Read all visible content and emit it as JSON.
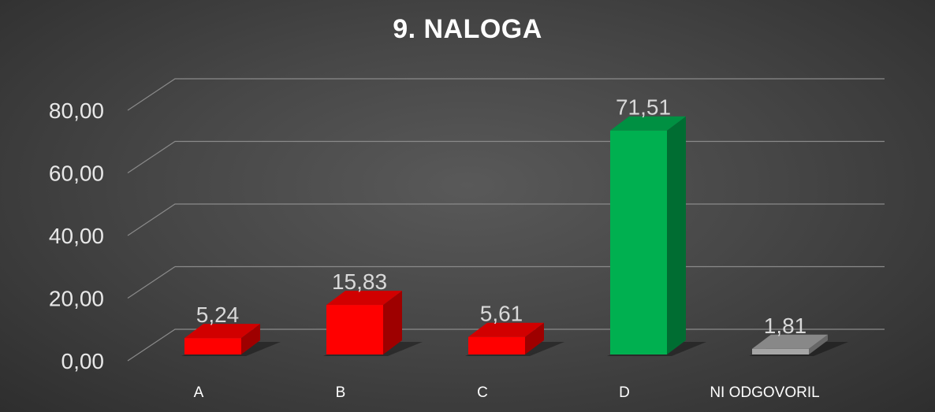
{
  "chart_data": {
    "type": "bar",
    "title": "9. NALOGA",
    "categories": [
      "A",
      "B",
      "C",
      "D",
      "NI ODGOVORIL"
    ],
    "values": [
      5.24,
      15.83,
      5.61,
      71.51,
      1.81
    ],
    "value_labels": [
      "5,24",
      "15,83",
      "5,61",
      "71,51",
      "1,81"
    ],
    "ylim": [
      0,
      80
    ],
    "y_ticks": [
      {
        "value": 0,
        "label": "0,00"
      },
      {
        "value": 20,
        "label": "20,00"
      },
      {
        "value": 40,
        "label": "40,00"
      },
      {
        "value": 60,
        "label": "60,00"
      },
      {
        "value": 80,
        "label": "80,00"
      }
    ],
    "bar_colors": [
      "#ff0000",
      "#ff0000",
      "#ff0000",
      "#00b050",
      "#a6a6a6"
    ],
    "style": "3d-column",
    "grid": true,
    "legend": "none",
    "xlabel": "",
    "ylabel": ""
  }
}
